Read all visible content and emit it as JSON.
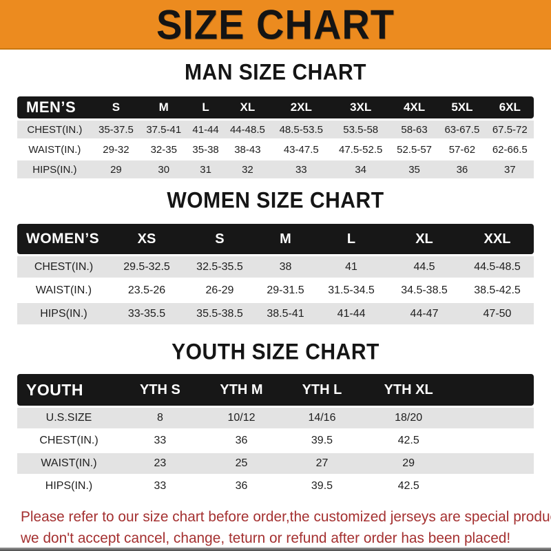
{
  "banner": {
    "title": "SIZE CHART"
  },
  "colors": {
    "banner_orange": "#ec8b1f",
    "banner_edge": "#c9770f",
    "header_black": "#171717",
    "row_gray": "#e3e3e3",
    "note_red": "#a43030",
    "bottom_bar": "#4a4a4a"
  },
  "sections": {
    "men": {
      "heading": "MAN SIZE CHART",
      "table": {
        "label": "MEN’S",
        "sizes": [
          "S",
          "M",
          "L",
          "XL",
          "2XL",
          "3XL",
          "4XL",
          "5XL",
          "6XL"
        ],
        "rows": [
          {
            "label": "CHEST(IN.)",
            "values": [
              "35-37.5",
              "37.5-41",
              "41-44",
              "44-48.5",
              "48.5-53.5",
              "53.5-58",
              "58-63",
              "63-67.5",
              "67.5-72"
            ]
          },
          {
            "label": "WAIST(IN.)",
            "values": [
              "29-32",
              "32-35",
              "35-38",
              "38-43",
              "43-47.5",
              "47.5-52.5",
              "52.5-57",
              "57-62",
              "62-66.5"
            ]
          },
          {
            "label": "HIPS(IN.)",
            "values": [
              "29",
              "30",
              "31",
              "32",
              "33",
              "34",
              "35",
              "36",
              "37"
            ]
          }
        ]
      }
    },
    "women": {
      "heading": "WOMEN SIZE CHART",
      "table": {
        "label": "WOMEN’S",
        "sizes": [
          "XS",
          "S",
          "M",
          "L",
          "XL",
          "XXL"
        ],
        "rows": [
          {
            "label": "CHEST(IN.)",
            "values": [
              "29.5-32.5",
              "32.5-35.5",
              "38",
              "41",
              "44.5",
              "44.5-48.5"
            ]
          },
          {
            "label": "WAIST(IN.)",
            "values": [
              "23.5-26",
              "26-29",
              "29-31.5",
              "31.5-34.5",
              "34.5-38.5",
              "38.5-42.5"
            ]
          },
          {
            "label": "HIPS(IN.)",
            "values": [
              "33-35.5",
              "35.5-38.5",
              "38.5-41",
              "41-44",
              "44-47",
              "47-50"
            ]
          }
        ]
      }
    },
    "youth": {
      "heading": "YOUTH SIZE CHART",
      "table": {
        "label": "YOUTH",
        "sizes": [
          "YTH S",
          "YTH M",
          "YTH L",
          "YTH XL"
        ],
        "rows": [
          {
            "label": "U.S.SIZE",
            "values": [
              "8",
              "10/12",
              "14/16",
              "18/20"
            ]
          },
          {
            "label": "CHEST(IN.)",
            "values": [
              "33",
              "36",
              "39.5",
              "42.5"
            ]
          },
          {
            "label": "WAIST(IN.)",
            "values": [
              "23",
              "25",
              "27",
              "29"
            ]
          },
          {
            "label": "HIPS(IN.)",
            "values": [
              "33",
              "36",
              "39.5",
              "42.5"
            ]
          }
        ]
      }
    }
  },
  "footer": {
    "lines": [
      "Please refer to our size chart before order,the customized jerseys are special products,",
      "we don't accept cancel, change, teturn or refund after order has been placed!"
    ]
  }
}
